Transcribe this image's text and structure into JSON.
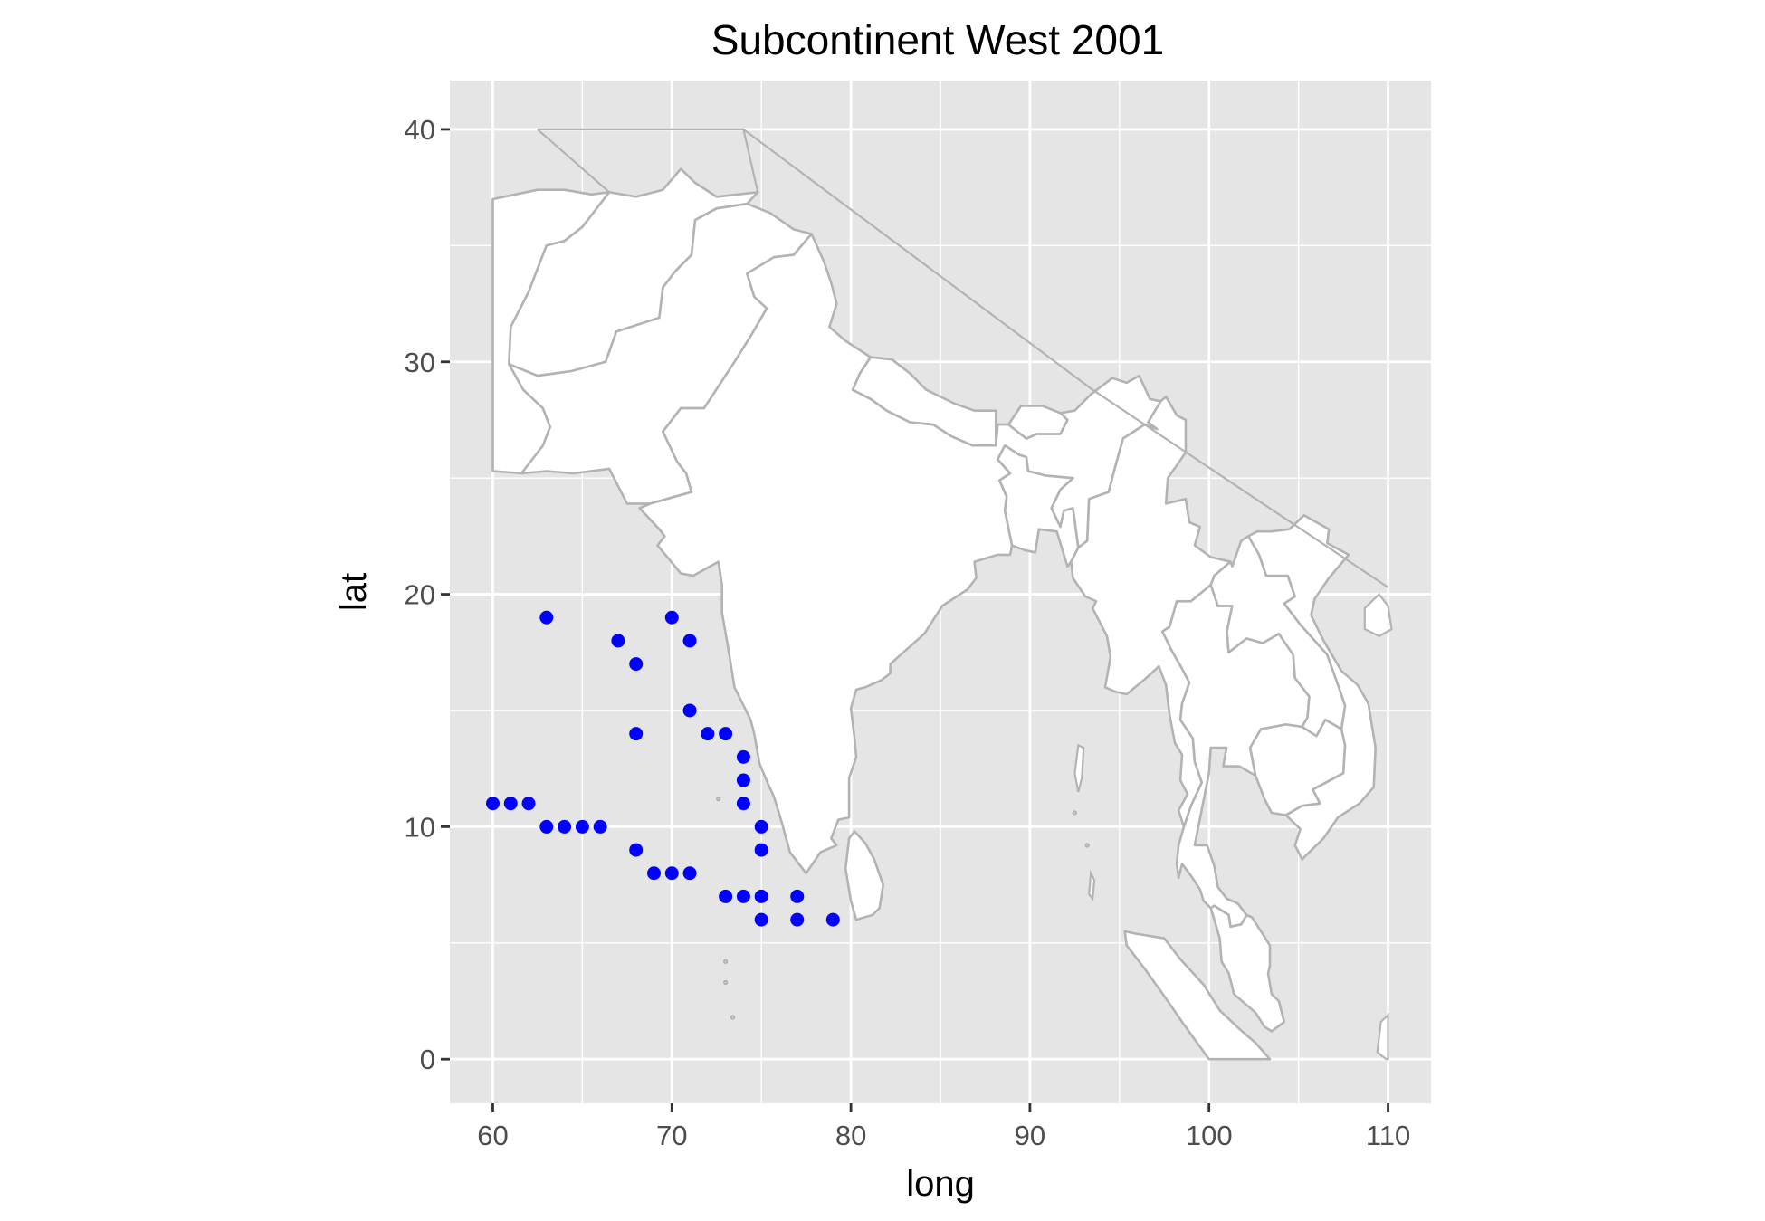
{
  "chart_data": {
    "type": "scatter",
    "title": "Subcontinent West 2001",
    "xlabel": "long",
    "ylabel": "lat",
    "xlim": [
      57.6,
      112.4
    ],
    "ylim": [
      -1.9,
      42.1
    ],
    "x_ticks": [
      60,
      70,
      80,
      90,
      100,
      110
    ],
    "y_ticks": [
      0,
      10,
      20,
      30,
      40
    ],
    "grid": true,
    "legend": "none",
    "colors": {
      "panel_background": "#e5e5e5",
      "gridlines": "#ffffff",
      "land_fill": "#ffffff",
      "land_border": "#b3b3b3",
      "points": "#0000ff"
    },
    "series": [
      {
        "points": [
          [
            63,
            19
          ],
          [
            70,
            19
          ],
          [
            67,
            18
          ],
          [
            71,
            18
          ],
          [
            68,
            17
          ],
          [
            71,
            15
          ],
          [
            68,
            14
          ],
          [
            72,
            14
          ],
          [
            73,
            14
          ],
          [
            74,
            13
          ],
          [
            74,
            12
          ],
          [
            60,
            11
          ],
          [
            61,
            11
          ],
          [
            62,
            11
          ],
          [
            74,
            11
          ],
          [
            63,
            10
          ],
          [
            64,
            10
          ],
          [
            65,
            10
          ],
          [
            66,
            10
          ],
          [
            75,
            10
          ],
          [
            68,
            9
          ],
          [
            75,
            9
          ],
          [
            69,
            8
          ],
          [
            70,
            8
          ],
          [
            71,
            8
          ],
          [
            73,
            7
          ],
          [
            74,
            7
          ],
          [
            75,
            7
          ],
          [
            77,
            7
          ],
          [
            75,
            6
          ],
          [
            77,
            6
          ],
          [
            79,
            6
          ]
        ]
      }
    ]
  }
}
